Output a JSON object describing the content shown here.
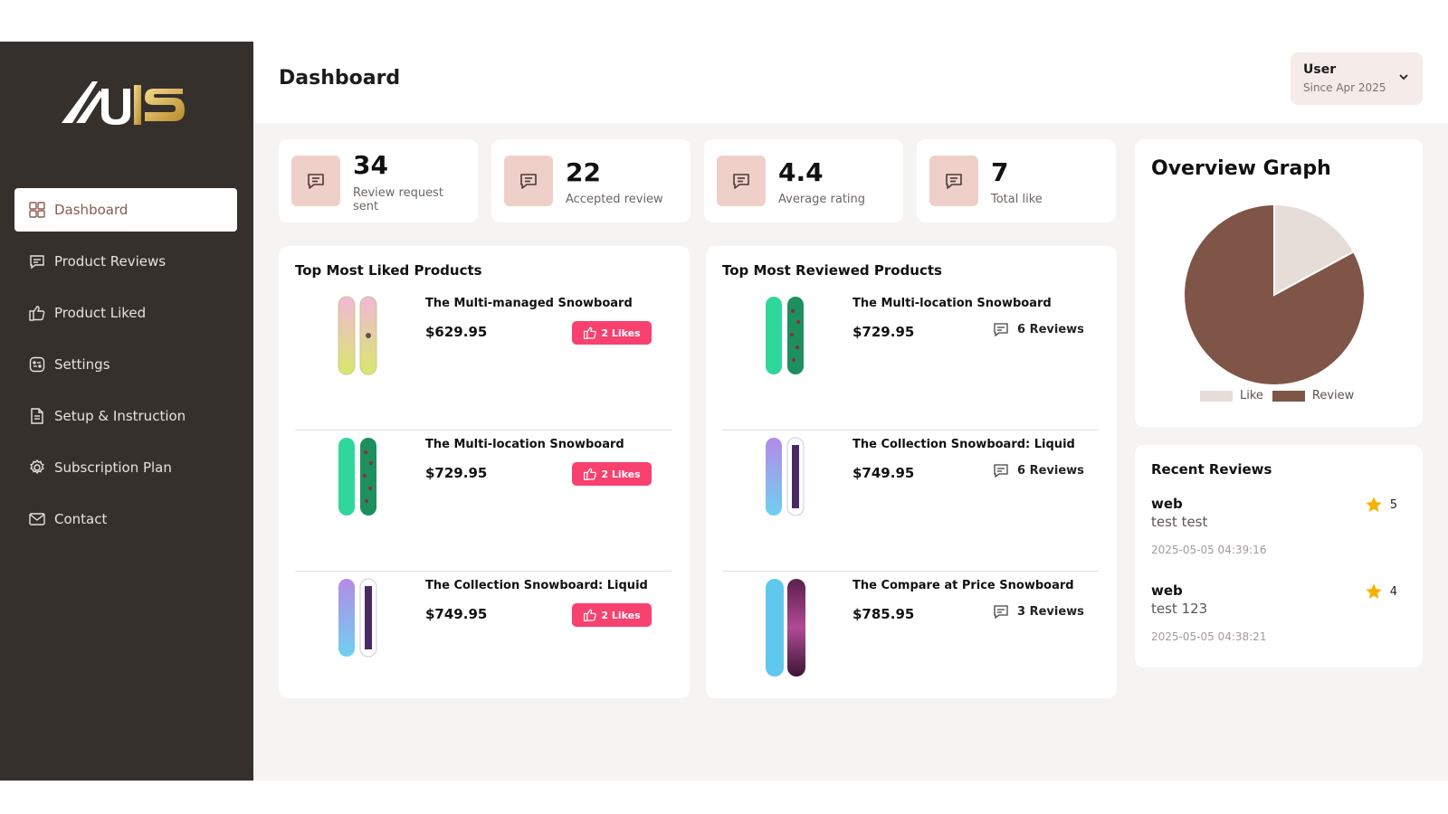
{
  "brand": {
    "logo_text": "U1S"
  },
  "sidebar": {
    "items": [
      {
        "label": "Dashboard",
        "icon": "grid-icon"
      },
      {
        "label": "Product Reviews",
        "icon": "message-icon"
      },
      {
        "label": "Product Liked",
        "icon": "thumbs-up-icon"
      },
      {
        "label": "Settings",
        "icon": "settings-icon"
      },
      {
        "label": "Setup & Instruction",
        "icon": "document-icon"
      },
      {
        "label": "Subscription Plan",
        "icon": "gear-icon"
      },
      {
        "label": "Contact",
        "icon": "mail-icon"
      }
    ]
  },
  "header": {
    "title": "Dashboard",
    "user": {
      "name": "User",
      "since": "Since Apr 2025"
    }
  },
  "stats": [
    {
      "value": "34",
      "label": "Review request sent"
    },
    {
      "value": "22",
      "label": "Accepted review"
    },
    {
      "value": "4.4",
      "label": "Average rating"
    },
    {
      "value": "7",
      "label": "Total like"
    }
  ],
  "liked": {
    "title": "Top Most Liked Products",
    "items": [
      {
        "name": "The Multi-managed Snowboard",
        "price": "$629.95",
        "likes": "2 Likes"
      },
      {
        "name": "The Multi-location Snowboard",
        "price": "$729.95",
        "likes": "2 Likes"
      },
      {
        "name": "The Collection Snowboard: Liquid",
        "price": "$749.95",
        "likes": "2 Likes"
      }
    ]
  },
  "reviewed": {
    "title": "Top Most Reviewed Products",
    "items": [
      {
        "name": "The Multi-location Snowboard",
        "price": "$729.95",
        "reviews": "6 Reviews"
      },
      {
        "name": "The Collection Snowboard: Liquid",
        "price": "$749.95",
        "reviews": "6 Reviews"
      },
      {
        "name": "The Compare at Price Snowboard",
        "price": "$785.95",
        "reviews": "3 Reviews"
      }
    ]
  },
  "overview": {
    "title": "Overview Graph",
    "chart_data": {
      "type": "pie",
      "labels": [
        "Like",
        "Review"
      ],
      "values": [
        7,
        34
      ],
      "colors": [
        "#e6dcd8",
        "#7f5547"
      ]
    }
  },
  "recent": {
    "title": "Recent Reviews",
    "items": [
      {
        "name": "web",
        "text": "test test",
        "date": "2025-05-05 04:39:16",
        "rating": "5"
      },
      {
        "name": "web",
        "text": "test 123",
        "date": "2025-05-05 04:38:21",
        "rating": "4"
      }
    ]
  },
  "colors": {
    "sidebar": "#36302c",
    "accent": "#8c5a4b",
    "like_badge": "#f8416f",
    "star": "#f5b301"
  }
}
